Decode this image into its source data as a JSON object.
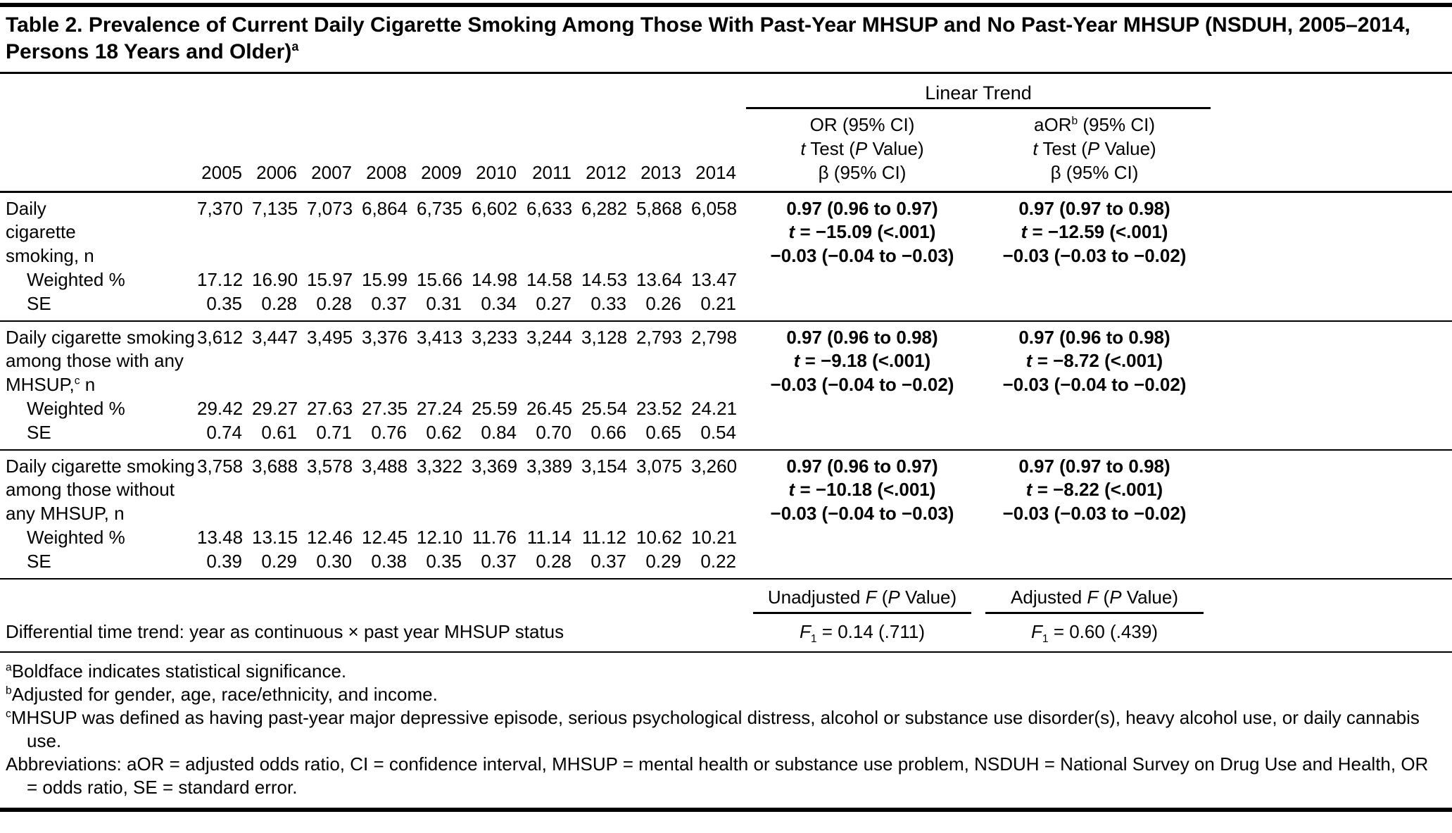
{
  "colors": {
    "background": "#ffffff",
    "text": "#000000",
    "rule": "#000000"
  },
  "symbols": {
    "t": "t",
    "P": "P",
    "F": "F",
    "sub_1": "1"
  },
  "title": {
    "text": "Table 2. Prevalence of Current Daily Cigarette Smoking Among Those With Past-Year MHSUP and No Past-Year MHSUP (NSDUH, 2005–2014, Persons 18 Years and Older)",
    "footnote_marker": "a"
  },
  "header": {
    "linear_trend_label": "Linear Trend",
    "years": [
      "2005",
      "2006",
      "2007",
      "2008",
      "2009",
      "2010",
      "2011",
      "2012",
      "2013",
      "2014"
    ],
    "or_line1": "OR (95% CI)",
    "aor_line1_pre": "aOR",
    "aor_sup": "b",
    "aor_line1_post": " (95% CI)",
    "t_test_mid": " Test (",
    "t_test_post": " Value)",
    "beta_line": "β (95% CI)"
  },
  "row_labels": {
    "weighted": "Weighted %",
    "se": "SE"
  },
  "groups": [
    {
      "label_pre": "Daily\ncigarette\nsmoking, n",
      "label_sup": "",
      "label_post": "",
      "n": [
        "7,370",
        "7,135",
        "7,073",
        "6,864",
        "6,735",
        "6,602",
        "6,633",
        "6,282",
        "5,868",
        "6,058"
      ],
      "weighted": [
        "17.12",
        "16.90",
        "15.97",
        "15.99",
        "15.66",
        "14.98",
        "14.58",
        "14.53",
        "13.64",
        "13.47"
      ],
      "se": [
        "0.35",
        "0.28",
        "0.28",
        "0.37",
        "0.31",
        "0.34",
        "0.27",
        "0.33",
        "0.26",
        "0.21"
      ],
      "or": {
        "estimate": "0.97 (0.96 to 0.97)",
        "t_rest": " = −15.09 (<.001)",
        "beta": "−0.03 (−0.04 to −0.03)"
      },
      "aor": {
        "estimate": "0.97 (0.97 to 0.98)",
        "t_rest": " = −12.59 (<.001)",
        "beta": "−0.03 (−0.03 to −0.02)"
      }
    },
    {
      "label_pre": "Daily cigarette smoking\namong those with any\nMHSUP,",
      "label_sup": "c",
      "label_post": " n",
      "n": [
        "3,612",
        "3,447",
        "3,495",
        "3,376",
        "3,413",
        "3,233",
        "3,244",
        "3,128",
        "2,793",
        "2,798"
      ],
      "weighted": [
        "29.42",
        "29.27",
        "27.63",
        "27.35",
        "27.24",
        "25.59",
        "26.45",
        "25.54",
        "23.52",
        "24.21"
      ],
      "se": [
        "0.74",
        "0.61",
        "0.71",
        "0.76",
        "0.62",
        "0.84",
        "0.70",
        "0.66",
        "0.65",
        "0.54"
      ],
      "or": {
        "estimate": "0.97 (0.96 to 0.98)",
        "t_rest": " = −9.18 (<.001)",
        "beta": "−0.03 (−0.04 to −0.02)"
      },
      "aor": {
        "estimate": "0.97 (0.96 to 0.98)",
        "t_rest": " = −8.72 (<.001)",
        "beta": "−0.03 (−0.04 to −0.02)"
      }
    },
    {
      "label_pre": "Daily cigarette smoking\namong those without\nany MHSUP, n",
      "label_sup": "",
      "label_post": "",
      "n": [
        "3,758",
        "3,688",
        "3,578",
        "3,488",
        "3,322",
        "3,369",
        "3,389",
        "3,154",
        "3,075",
        "3,260"
      ],
      "weighted": [
        "13.48",
        "13.15",
        "12.46",
        "12.45",
        "12.10",
        "11.76",
        "11.14",
        "11.12",
        "10.62",
        "10.21"
      ],
      "se": [
        "0.39",
        "0.29",
        "0.30",
        "0.38",
        "0.35",
        "0.37",
        "0.28",
        "0.37",
        "0.29",
        "0.22"
      ],
      "or": {
        "estimate": "0.97 (0.96 to 0.97)",
        "t_rest": " = −10.18 (<.001)",
        "beta": "−0.03 (−0.04 to −0.03)"
      },
      "aor": {
        "estimate": "0.97 (0.97 to 0.98)",
        "t_rest": " = −8.22 (<.001)",
        "beta": "−0.03 (−0.03 to −0.02)"
      }
    }
  ],
  "ftest": {
    "unadjusted_pre": "Unadjusted ",
    "adjusted_pre": "Adjusted ",
    "paren_mid": " (",
    "value_post": " Value)",
    "diff_label": "Differential time trend: year as continuous × past year MHSUP status",
    "f1_rest": " = 0.14 (.711)",
    "f2_rest": " = 0.60 (.439)"
  },
  "footnotes": [
    {
      "marker": "a",
      "text": "Boldface indicates statistical significance."
    },
    {
      "marker": "b",
      "text": "Adjusted for gender, age, race/ethnicity, and income."
    },
    {
      "marker": "c",
      "text": "MHSUP was defined as having past-year major depressive episode, serious psychological distress, alcohol or substance use disorder(s), heavy alcohol use, or daily cannabis use."
    },
    {
      "marker": "",
      "text": "Abbreviations: aOR = adjusted odds ratio, CI = confidence interval, MHSUP = mental health or substance use problem, NSDUH = National Survey on Drug Use and Health, OR = odds ratio, SE = standard error."
    }
  ]
}
